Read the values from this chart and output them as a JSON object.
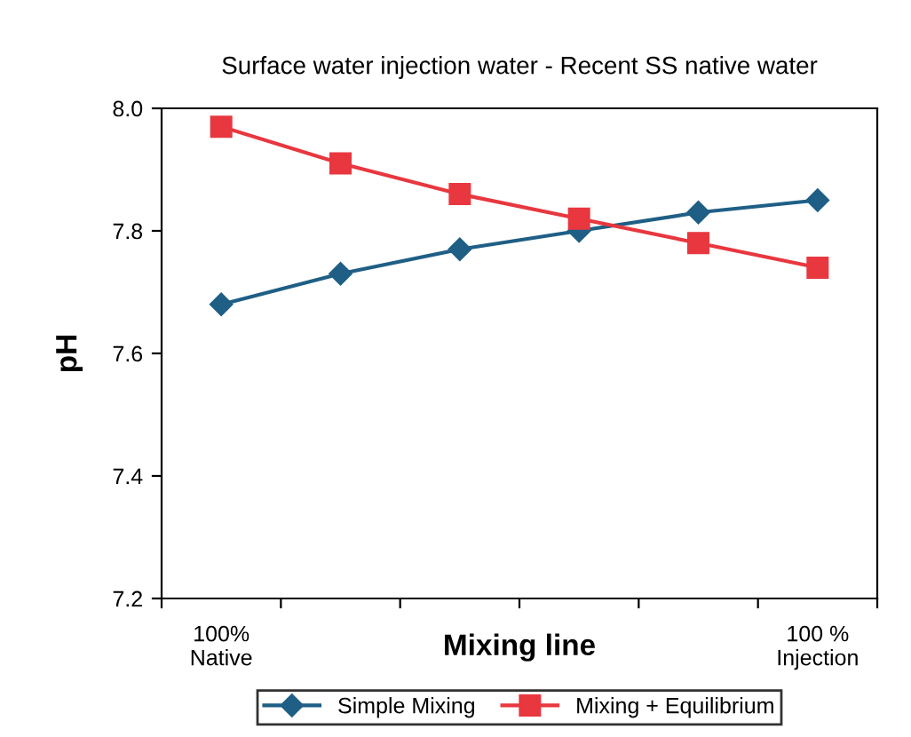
{
  "chart_data": {
    "type": "line",
    "title": "Surface water injection water - Recent SS native water",
    "xlabel": "Mixing line",
    "ylabel": "pH",
    "categories": [
      "100%\nNative",
      null,
      null,
      null,
      null,
      "100 %\nInjection"
    ],
    "series": [
      {
        "name": "Simple Mixing",
        "color": "#1f5f86",
        "marker": "diamond",
        "values": [
          7.68,
          7.73,
          7.77,
          7.8,
          7.83,
          7.85
        ]
      },
      {
        "name": "Mixing + Equilibrium",
        "color": "#e8373f",
        "marker": "square",
        "values": [
          7.97,
          7.91,
          7.86,
          7.82,
          7.78,
          7.74
        ]
      }
    ],
    "ylim": [
      7.2,
      8.0
    ],
    "yticks": [
      {
        "value": 7.2,
        "label": "7.2"
      },
      {
        "value": 7.4,
        "label": "7.4"
      },
      {
        "value": 7.6,
        "label": "7.6"
      },
      {
        "value": 7.8,
        "label": "7.8"
      },
      {
        "value": 8.0,
        "label": "8.0"
      }
    ],
    "grid": false,
    "legend": "bottom",
    "line_style": "solid"
  }
}
